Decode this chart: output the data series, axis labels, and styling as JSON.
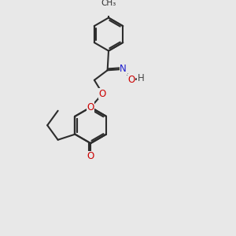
{
  "bg_color": "#e8e8e8",
  "bond_color": "#2d2d2d",
  "bond_width": 1.5,
  "figsize": [
    3.0,
    3.0
  ],
  "dpi": 100,
  "atom_colors": {
    "O": "#cc0000",
    "N": "#1a1acc",
    "C": "#2d2d2d",
    "H": "#444444"
  }
}
